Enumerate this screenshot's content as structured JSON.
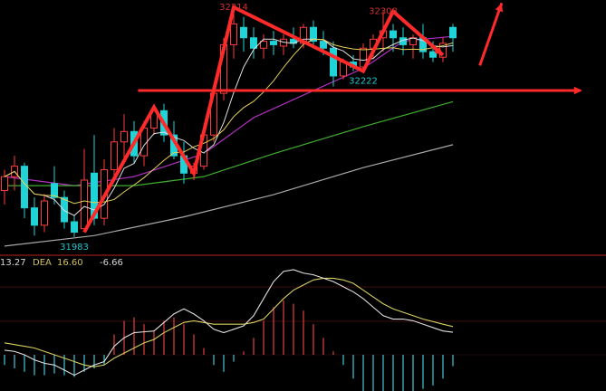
{
  "chart_data": [
    {
      "type": "candlestick",
      "title": "",
      "ylim": [
        31960,
        32330
      ],
      "grid": false,
      "candles_ohlc": [
        [
          32050,
          32080,
          32030,
          32070
        ],
        [
          32070,
          32100,
          32050,
          32085
        ],
        [
          32085,
          32090,
          32010,
          32025
        ],
        [
          32025,
          32040,
          31985,
          32000
        ],
        [
          32000,
          32045,
          31990,
          32035
        ],
        [
          32060,
          32085,
          32030,
          32040
        ],
        [
          32040,
          32050,
          31995,
          32005
        ],
        [
          32005,
          32015,
          31983,
          31990
        ],
        [
          31995,
          32110,
          31990,
          32065
        ],
        [
          32075,
          32130,
          32000,
          32010
        ],
        [
          32010,
          32095,
          32000,
          32080
        ],
        [
          32080,
          32140,
          32070,
          32120
        ],
        [
          32120,
          32160,
          32090,
          32135
        ],
        [
          32135,
          32150,
          32090,
          32100
        ],
        [
          32100,
          32150,
          32085,
          32140
        ],
        [
          32140,
          32175,
          32130,
          32165
        ],
        [
          32165,
          32175,
          32120,
          32130
        ],
        [
          32130,
          32150,
          32095,
          32100
        ],
        [
          32100,
          32120,
          32060,
          32075
        ],
        [
          32075,
          32090,
          32065,
          32085
        ],
        [
          32085,
          32140,
          32080,
          32130
        ],
        [
          32130,
          32200,
          32120,
          32190
        ],
        [
          32190,
          32270,
          32180,
          32260
        ],
        [
          32260,
          32314,
          32240,
          32290
        ],
        [
          32285,
          32300,
          32250,
          32270
        ],
        [
          32270,
          32285,
          32240,
          32255
        ],
        [
          32255,
          32275,
          32240,
          32265
        ],
        [
          32265,
          32280,
          32245,
          32260
        ],
        [
          32258,
          32275,
          32245,
          32268
        ],
        [
          32268,
          32285,
          32255,
          32262
        ],
        [
          32262,
          32290,
          32255,
          32285
        ],
        [
          32285,
          32295,
          32255,
          32265
        ],
        [
          32265,
          32280,
          32245,
          32255
        ],
        [
          32255,
          32265,
          32200,
          32215
        ],
        [
          32215,
          32240,
          32210,
          32235
        ],
        [
          32235,
          32245,
          32222,
          32228
        ],
        [
          32228,
          32262,
          32222,
          32255
        ],
        [
          32255,
          32275,
          32240,
          32268
        ],
        [
          32270,
          32308,
          32250,
          32280
        ],
        [
          32280,
          32290,
          32250,
          32270
        ],
        [
          32270,
          32285,
          32245,
          32260
        ],
        [
          32260,
          32275,
          32240,
          32270
        ],
        [
          32270,
          32290,
          32240,
          32250
        ],
        [
          32250,
          32265,
          32235,
          32242
        ],
        [
          32242,
          32270,
          32235,
          32262
        ],
        [
          32285,
          32290,
          32250,
          32270
        ]
      ],
      "long_ma_lines": [
        {
          "color": "#b030c0",
          "points": [
            [
              0,
              32070
            ],
            [
              7,
              32057
            ],
            [
              13,
              32070
            ],
            [
              20,
              32103
            ],
            [
              25,
              32155
            ],
            [
              31,
              32194
            ],
            [
              36,
              32226
            ],
            [
              40,
              32265
            ],
            [
              45,
              32272
            ]
          ]
        },
        {
          "color": "#3fae2e",
          "points": [
            [
              0,
              32057
            ],
            [
              13,
              32057
            ],
            [
              20,
              32070
            ],
            [
              27,
              32103
            ],
            [
              36,
              32142
            ],
            [
              45,
              32178
            ]
          ]
        },
        {
          "color": "#a8a8a8",
          "points": [
            [
              0,
              31970
            ],
            [
              9,
              31985
            ],
            [
              18,
              32012
            ],
            [
              27,
              32044
            ],
            [
              36,
              32083
            ],
            [
              45,
              32116
            ]
          ]
        }
      ],
      "short_ma_colors": {
        "ma5": "#e0e0e0",
        "ma10": "#e3cf5a"
      },
      "candle_colors": {
        "up": "#ff3b3b",
        "down": "#1fd3d6"
      },
      "annotations": {
        "price_labels": [
          {
            "text": "32314",
            "index": 23,
            "price": 32314,
            "color": "#d03030",
            "pos": "above"
          },
          {
            "text": "32308",
            "index": 38,
            "price": 32308,
            "color": "#d03030",
            "pos": "above"
          },
          {
            "text": "32222",
            "index": 36,
            "price": 32222,
            "color": "#20c8d0",
            "pos": "below"
          },
          {
            "text": "31983",
            "index": 7,
            "price": 31983,
            "color": "#20c8d0",
            "pos": "below"
          }
        ],
        "zigzag": [
          [
            8,
            31990
          ],
          [
            15,
            32170
          ],
          [
            19,
            32075
          ],
          [
            23,
            32314
          ],
          [
            36,
            32222
          ],
          [
            39,
            32308
          ],
          [
            44,
            32245
          ]
        ],
        "up_arrow": [
          [
            47.7,
            32230
          ],
          [
            49.9,
            32320
          ]
        ],
        "horizontal_arrow": {
          "price": 32194,
          "from_index": 13.4,
          "to_index": 57.8
        },
        "arrow_color": "#ff2a2a"
      }
    },
    {
      "type": "macd",
      "title": "",
      "ylim": [
        -45,
        55
      ],
      "legend": {
        "dif_value": "13.27",
        "dea_label": "DEA",
        "dea_value": "16.60",
        "macd_value": "-6.66"
      },
      "dif": [
        2.7,
        2,
        0,
        -3,
        -5,
        -6,
        -9,
        -12,
        -9,
        -6,
        -4,
        5,
        10,
        13,
        13.5,
        14,
        19,
        24,
        27,
        24,
        20,
        15,
        13,
        15,
        17,
        23,
        33,
        43,
        49,
        50,
        48,
        47,
        45,
        43,
        40,
        37,
        33,
        28,
        23,
        21,
        21,
        20,
        18,
        16,
        14,
        13.27
      ],
      "dea": [
        7,
        6,
        5,
        4,
        2,
        0,
        -2,
        -4,
        -6,
        -7,
        -6,
        -2,
        1,
        4,
        7,
        9,
        13,
        16,
        19,
        20,
        19,
        18,
        18,
        18,
        18,
        19,
        21,
        27,
        33,
        38,
        41,
        44,
        45,
        45,
        44,
        42,
        38,
        34,
        30,
        27,
        25,
        23,
        21,
        19.5,
        18,
        16.6
      ],
      "histogram": [
        -6,
        -8,
        -10,
        -12,
        -12,
        -11,
        -12,
        -13,
        -10,
        -8,
        -6,
        12,
        20,
        22,
        18,
        14,
        20,
        22,
        18,
        12,
        4,
        -6,
        -10,
        -4,
        2,
        10,
        20,
        28,
        32,
        30,
        26,
        18,
        10,
        2,
        -6,
        -14,
        -22,
        -28,
        -32,
        -30,
        -26,
        -22,
        -20,
        -18,
        -14,
        -6.66
      ],
      "colors": {
        "dif": "#e0e0e0",
        "dea": "#d8cf60",
        "pos": "#d23a3a",
        "neg": "#3ab8c8",
        "legend_dea": "#cfc05a",
        "legend_text": "#d8d8d8"
      }
    }
  ]
}
